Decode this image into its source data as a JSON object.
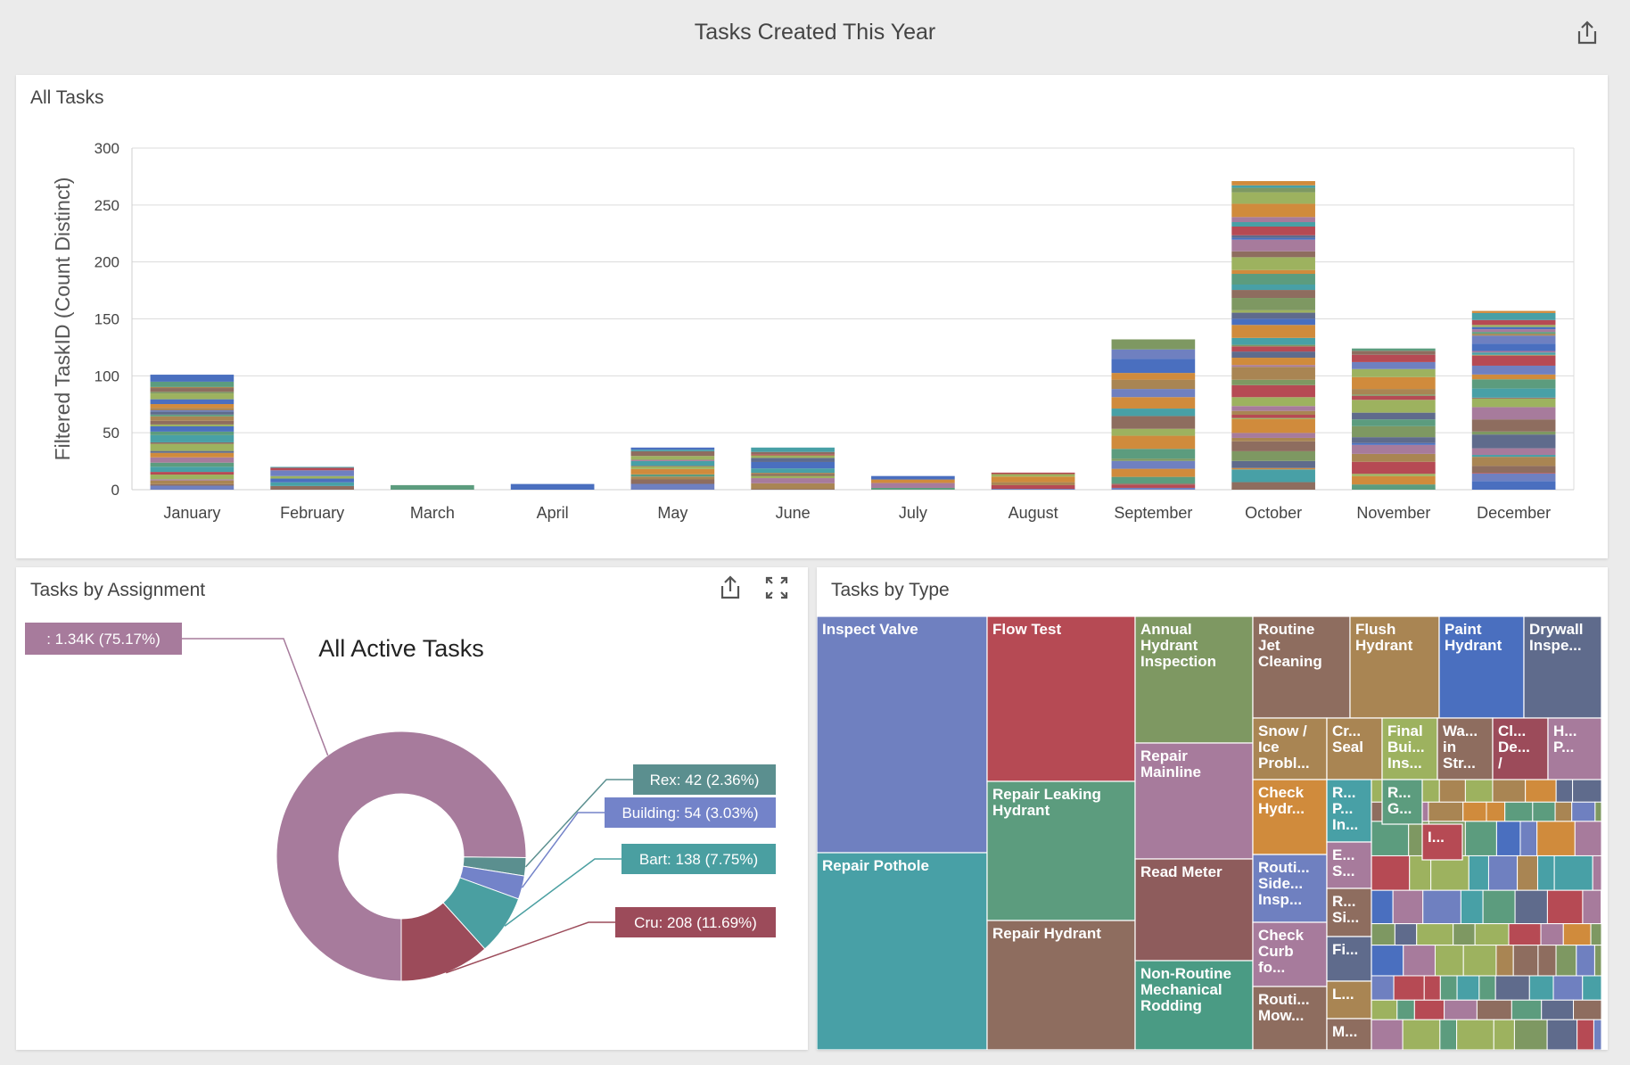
{
  "header": {
    "title": "Tasks Created This Year",
    "share_icon": "share-icon"
  },
  "colors": {
    "purple_blue": "#6f80c0",
    "red": "#b64a54",
    "olive": "#7e9862",
    "brown": "#8e6d5f",
    "tan": "#a98553",
    "teal": "#48a0a6",
    "green": "#5c9c7e",
    "mauve": "#a77b9c",
    "orange": "#d08b3c",
    "blue": "#4a6fbf",
    "slate": "#5f6b8c",
    "lime": "#9db25f"
  },
  "all_tasks": {
    "title": "All Tasks"
  },
  "assignment": {
    "title": "Tasks by Assignment",
    "share_icon": "share-icon",
    "expand_icon": "expand-icon"
  },
  "type": {
    "title": "Tasks by Type"
  },
  "chart_data": [
    {
      "type": "bar",
      "stacked": true,
      "title": "All Tasks",
      "xlabel": "",
      "ylabel": "Filtered TaskID (Count Distinct)",
      "ylim": [
        0,
        300
      ],
      "yticks": [
        "0",
        "50",
        "100",
        "150",
        "200",
        "250",
        "300"
      ],
      "categories": [
        "January",
        "February",
        "March",
        "April",
        "May",
        "June",
        "July",
        "August",
        "September",
        "October",
        "November",
        "December"
      ],
      "values": [
        101,
        20,
        4,
        5,
        37,
        37,
        12,
        15,
        132,
        271,
        124,
        157
      ],
      "grid": true
    },
    {
      "type": "pie",
      "donut": true,
      "title": "All Active Tasks",
      "slices": [
        {
          "label": ": 1.34K (75.17%)",
          "value": 1338,
          "percent": 75.17,
          "color": "#a77b9c"
        },
        {
          "label": "Rex: 42 (2.36%)",
          "value": 42,
          "percent": 2.36,
          "color": "#5b8f8f"
        },
        {
          "label": "Building: 54 (3.03%)",
          "value": 54,
          "percent": 3.03,
          "color": "#7383c9"
        },
        {
          "label": "Bart: 138 (7.75%)",
          "value": 138,
          "percent": 7.75,
          "color": "#4a9fa1"
        },
        {
          "label": "Cru: 208 (11.69%)",
          "value": 208,
          "percent": 11.69,
          "color": "#9c4b5a"
        }
      ]
    },
    {
      "type": "treemap",
      "title": "Tasks by Type",
      "labeled_tiles": [
        {
          "label": "Inspect Valve",
          "color": "#6f80c0"
        },
        {
          "label": "Repair Pothole",
          "color": "#48a0a6"
        },
        {
          "label": "Flow Test",
          "color": "#b64a54"
        },
        {
          "label": "Repair Leaking Hydrant",
          "color": "#5c9c7e"
        },
        {
          "label": "Repair Hydrant",
          "color": "#8e6d5f"
        },
        {
          "label": "Annual Hydrant Inspection",
          "color": "#7e9862"
        },
        {
          "label": "Repair Mainline",
          "color": "#a77b9c"
        },
        {
          "label": "Read Meter",
          "color": "#8e5c5c"
        },
        {
          "label": "Non-Routine Mechanical Rodding",
          "color": "#4a9b84"
        },
        {
          "label": "Routine Jet Cleaning",
          "color": "#8e6d5f"
        },
        {
          "label": "Flush Hydrant",
          "color": "#a98553"
        },
        {
          "label": "Paint Hydrant",
          "color": "#4a6fbf"
        },
        {
          "label": "Drywall Inspe...",
          "color": "#5f6b8c"
        },
        {
          "label": "Snow / Ice Probl...",
          "color": "#a98553"
        },
        {
          "label": "Cr... Seal",
          "color": "#a98553"
        },
        {
          "label": "Final Bui... Ins...",
          "color": "#9db25f"
        },
        {
          "label": "Wa... in Str...",
          "color": "#8e6d5f"
        },
        {
          "label": "Cl... De... /",
          "color": "#9c4b5a"
        },
        {
          "label": "H... P...",
          "color": "#a77b9c"
        },
        {
          "label": "Check Hydr...",
          "color": "#d08b3c"
        },
        {
          "label": "Routi... Side... Insp...",
          "color": "#6f80c0"
        },
        {
          "label": "Check Curb fo...",
          "color": "#a77b9c"
        },
        {
          "label": "Routi... Mow...",
          "color": "#8e6d5f"
        },
        {
          "label": "R... P... In...",
          "color": "#48a0a6"
        },
        {
          "label": "E... S...",
          "color": "#a77b9c"
        },
        {
          "label": "R... Si...",
          "color": "#8e6d5f"
        },
        {
          "label": "Fi...",
          "color": "#5f6b8c"
        },
        {
          "label": "L...",
          "color": "#a98553"
        },
        {
          "label": "M...",
          "color": "#8e6d5f"
        },
        {
          "label": "R... G...",
          "color": "#5c9c7e"
        },
        {
          "label": "I...",
          "color": "#b64a54"
        }
      ]
    }
  ]
}
